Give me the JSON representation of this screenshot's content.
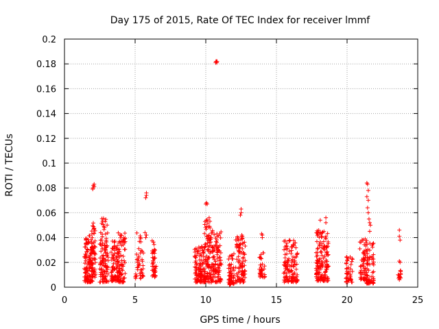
{
  "chart_data": {
    "type": "scatter",
    "title": "Day 175 of 2015, Rate Of TEC Index for receiver lmmf",
    "xlabel": "GPS time / hours",
    "ylabel": "ROTI / TECUs",
    "xlim": [
      0,
      25
    ],
    "ylim": [
      0,
      0.2
    ],
    "xticks": [
      0,
      5,
      10,
      15,
      20,
      25
    ],
    "xtick_labels": [
      "0",
      "5",
      "10",
      "15",
      "20",
      "25"
    ],
    "yticks": [
      0,
      0.02,
      0.04,
      0.06,
      0.08,
      0.1,
      0.12,
      0.14,
      0.16,
      0.18,
      0.2
    ],
    "ytick_labels": [
      "0",
      "0.02",
      "0.04",
      "0.06",
      "0.08",
      "0.1",
      "0.12",
      "0.14",
      "0.16",
      "0.18",
      "0.2"
    ],
    "grid": true,
    "marker": "plus",
    "series_color": "#ff0000",
    "clusters": [
      {
        "x": [
          1.4,
          2.0
        ],
        "ymin": 0.004,
        "ymax": 0.042,
        "n": 120
      },
      {
        "x": [
          1.9,
          2.2
        ],
        "ymin": 0.008,
        "ymax": 0.052,
        "n": 60
      },
      {
        "x": [
          2.5,
          3.1
        ],
        "ymin": 0.004,
        "ymax": 0.056,
        "n": 110
      },
      {
        "x": [
          3.3,
          3.8
        ],
        "ymin": 0.005,
        "ymax": 0.038,
        "n": 80
      },
      {
        "x": [
          3.8,
          4.3
        ],
        "ymin": 0.004,
        "ymax": 0.044,
        "n": 80
      },
      {
        "x": [
          5.0,
          5.6
        ],
        "ymin": 0.007,
        "ymax": 0.045,
        "n": 45
      },
      {
        "x": [
          6.2,
          6.5
        ],
        "ymin": 0.008,
        "ymax": 0.038,
        "n": 40
      },
      {
        "x": [
          9.2,
          9.9
        ],
        "ymin": 0.004,
        "ymax": 0.033,
        "n": 110
      },
      {
        "x": [
          9.9,
          10.6
        ],
        "ymin": 0.004,
        "ymax": 0.056,
        "n": 130
      },
      {
        "x": [
          10.6,
          11.1
        ],
        "ymin": 0.004,
        "ymax": 0.045,
        "n": 70
      },
      {
        "x": [
          11.6,
          12.0
        ],
        "ymin": 0.002,
        "ymax": 0.027,
        "n": 60
      },
      {
        "x": [
          12.1,
          12.8
        ],
        "ymin": 0.004,
        "ymax": 0.042,
        "n": 100
      },
      {
        "x": [
          13.8,
          14.2
        ],
        "ymin": 0.008,
        "ymax": 0.028,
        "n": 35
      },
      {
        "x": [
          15.5,
          16.5
        ],
        "ymin": 0.004,
        "ymax": 0.038,
        "n": 120
      },
      {
        "x": [
          17.8,
          18.7
        ],
        "ymin": 0.005,
        "ymax": 0.046,
        "n": 150
      },
      {
        "x": [
          19.9,
          20.4
        ],
        "ymin": 0.004,
        "ymax": 0.025,
        "n": 45
      },
      {
        "x": [
          20.9,
          21.3
        ],
        "ymin": 0.006,
        "ymax": 0.04,
        "n": 50
      },
      {
        "x": [
          21.3,
          21.9
        ],
        "ymin": 0.003,
        "ymax": 0.038,
        "n": 80
      },
      {
        "x": [
          23.6,
          23.8
        ],
        "ymin": 0.007,
        "ymax": 0.015,
        "n": 14
      }
    ],
    "points": [
      [
        2.0,
        0.08
      ],
      [
        2.05,
        0.082
      ],
      [
        2.1,
        0.083
      ],
      [
        2.0,
        0.079
      ],
      [
        2.1,
        0.081
      ],
      [
        5.8,
        0.074
      ],
      [
        5.8,
        0.076
      ],
      [
        5.75,
        0.072
      ],
      [
        5.7,
        0.044
      ],
      [
        5.8,
        0.042
      ],
      [
        5.75,
        0.04
      ],
      [
        10.0,
        0.067
      ],
      [
        10.05,
        0.068
      ],
      [
        10.1,
        0.067
      ],
      [
        10.7,
        0.181
      ],
      [
        10.75,
        0.182
      ],
      [
        10.8,
        0.182
      ],
      [
        10.78,
        0.181
      ],
      [
        10.72,
        0.182
      ],
      [
        12.5,
        0.063
      ],
      [
        12.45,
        0.058
      ],
      [
        12.5,
        0.06
      ],
      [
        14.0,
        0.04
      ],
      [
        14.0,
        0.042
      ],
      [
        13.95,
        0.043
      ],
      [
        18.1,
        0.054
      ],
      [
        18.5,
        0.056
      ],
      [
        18.5,
        0.052
      ],
      [
        21.4,
        0.084
      ],
      [
        21.45,
        0.083
      ],
      [
        21.5,
        0.078
      ],
      [
        21.4,
        0.073
      ],
      [
        21.5,
        0.07
      ],
      [
        21.45,
        0.064
      ],
      [
        21.5,
        0.06
      ],
      [
        21.55,
        0.055
      ],
      [
        21.6,
        0.052
      ],
      [
        21.65,
        0.05
      ],
      [
        21.6,
        0.045
      ],
      [
        23.7,
        0.046
      ],
      [
        23.7,
        0.041
      ],
      [
        23.75,
        0.038
      ],
      [
        23.7,
        0.021
      ],
      [
        23.75,
        0.02
      ],
      [
        23.7,
        0.006
      ]
    ]
  }
}
